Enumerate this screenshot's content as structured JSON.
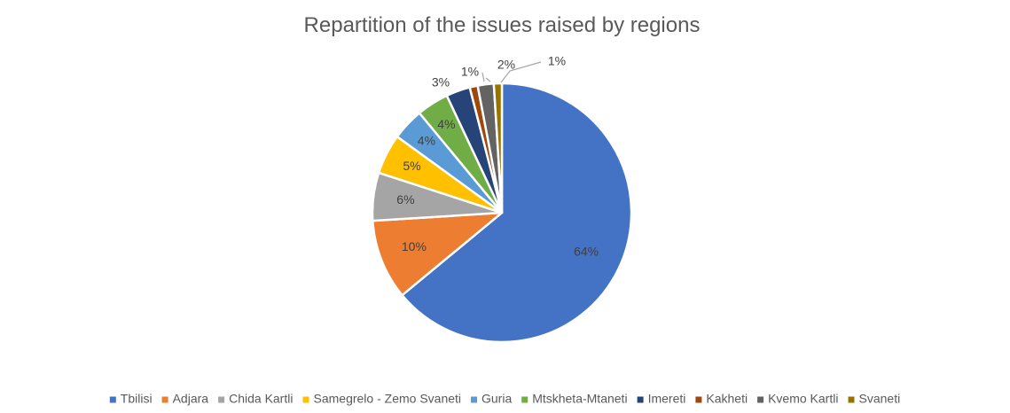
{
  "chart_data": {
    "type": "pie",
    "title": "Repartition of the issues raised by regions",
    "legend_position": "bottom",
    "categories": [
      "Tbilisi",
      "Adjara",
      "Chida Kartli",
      "Samegrelo - Zemo Svaneti",
      "Guria",
      "Mtskheta-Mtaneti",
      "Imereti",
      "Kakheti",
      "Kvemo Kartli",
      "Svaneti"
    ],
    "values": [
      64,
      10,
      6,
      5,
      4,
      4,
      3,
      1,
      2,
      1
    ],
    "labels": [
      "64%",
      "10%",
      "6%",
      "5%",
      "4%",
      "4%",
      "3%",
      "1%",
      "2%",
      "1%"
    ],
    "colors": [
      "#4472C4",
      "#ED7D31",
      "#A5A5A5",
      "#FFC000",
      "#5B9BD5",
      "#70AD47",
      "#264478",
      "#9E480E",
      "#636363",
      "#997300"
    ]
  }
}
